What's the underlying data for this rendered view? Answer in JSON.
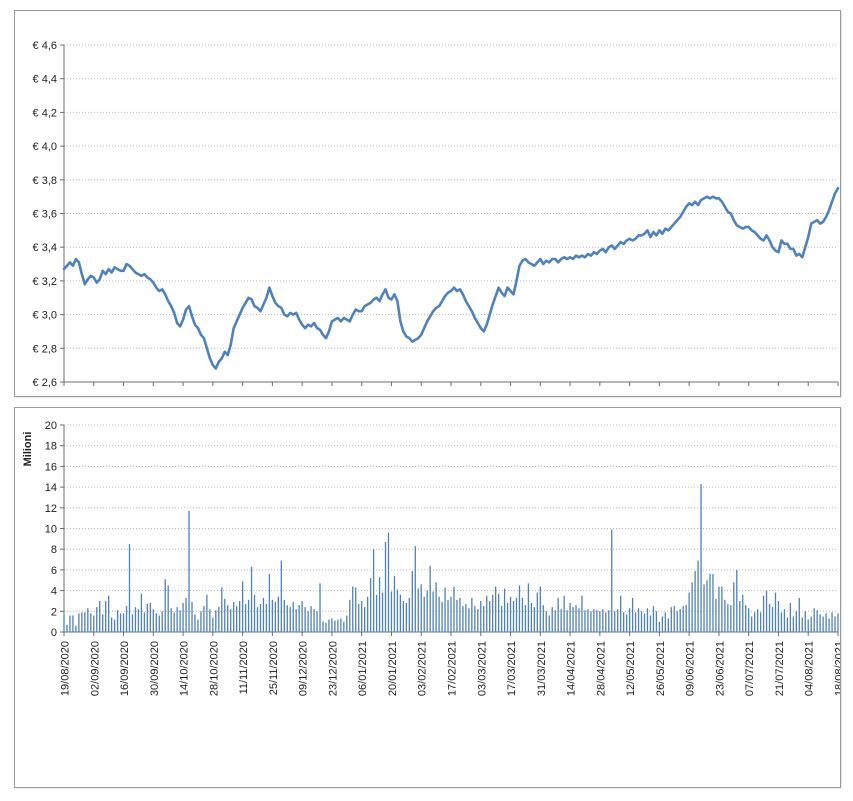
{
  "chart_data": [
    {
      "type": "line",
      "name": "share-price",
      "ylabel": "",
      "y_tick_labels": [
        "€ 4,6",
        "€ 4,4",
        "€ 4,2",
        "€ 4,0",
        "€ 3,8",
        "€ 3,6",
        "€ 3,4",
        "€ 3,2",
        "€ 3,0",
        "€ 2,8",
        "€ 2,6"
      ],
      "ylim": [
        2.6,
        4.6
      ],
      "y_step": 0.2,
      "grid": true,
      "line_color": "#4F81BD",
      "x_tick_labels": [
        "19/08/2020",
        "02/09/2020",
        "16/09/2020",
        "30/09/2020",
        "14/10/2020",
        "28/10/2020",
        "11/11/2020",
        "25/11/2020",
        "09/12/2020",
        "23/12/2020",
        "06/01/2021",
        "20/01/2021",
        "03/02/2021",
        "17/02/2021",
        "03/03/2021",
        "17/03/2021",
        "31/03/2021",
        "14/04/2021",
        "28/04/2021",
        "12/05/2021",
        "26/05/2021",
        "09/06/2021",
        "23/06/2021",
        "07/07/2021",
        "21/07/2021",
        "04/08/2021",
        "18/08/2021"
      ],
      "show_x_labels": false,
      "values": [
        3.27,
        3.29,
        3.31,
        3.29,
        3.33,
        3.31,
        3.24,
        3.18,
        3.21,
        3.23,
        3.22,
        3.19,
        3.21,
        3.26,
        3.24,
        3.27,
        3.25,
        3.28,
        3.27,
        3.26,
        3.26,
        3.3,
        3.29,
        3.27,
        3.25,
        3.24,
        3.23,
        3.24,
        3.22,
        3.21,
        3.19,
        3.16,
        3.14,
        3.15,
        3.12,
        3.08,
        3.05,
        3.01,
        2.95,
        2.93,
        2.97,
        3.03,
        3.05,
        2.99,
        2.94,
        2.92,
        2.88,
        2.86,
        2.8,
        2.74,
        2.7,
        2.68,
        2.72,
        2.74,
        2.78,
        2.76,
        2.82,
        2.92,
        2.96,
        3.0,
        3.04,
        3.07,
        3.1,
        3.09,
        3.05,
        3.04,
        3.02,
        3.06,
        3.1,
        3.16,
        3.11,
        3.07,
        3.05,
        3.04,
        3.0,
        2.99,
        3.01,
        3.0,
        3.01,
        2.97,
        2.94,
        2.92,
        2.94,
        2.93,
        2.95,
        2.92,
        2.91,
        2.88,
        2.86,
        2.9,
        2.96,
        2.97,
        2.98,
        2.96,
        2.98,
        2.97,
        2.96,
        3.0,
        3.03,
        3.02,
        3.02,
        3.05,
        3.06,
        3.07,
        3.09,
        3.1,
        3.08,
        3.12,
        3.15,
        3.1,
        3.09,
        3.12,
        3.08,
        2.96,
        2.9,
        2.87,
        2.86,
        2.84,
        2.85,
        2.86,
        2.88,
        2.92,
        2.96,
        2.99,
        3.02,
        3.04,
        3.05,
        3.08,
        3.11,
        3.13,
        3.14,
        3.16,
        3.14,
        3.15,
        3.12,
        3.08,
        3.05,
        3.02,
        2.98,
        2.95,
        2.92,
        2.9,
        2.94,
        3.0,
        3.06,
        3.11,
        3.16,
        3.13,
        3.11,
        3.16,
        3.14,
        3.12,
        3.2,
        3.29,
        3.32,
        3.33,
        3.31,
        3.3,
        3.29,
        3.31,
        3.33,
        3.3,
        3.32,
        3.31,
        3.33,
        3.33,
        3.31,
        3.33,
        3.34,
        3.33,
        3.34,
        3.33,
        3.35,
        3.34,
        3.35,
        3.34,
        3.36,
        3.35,
        3.37,
        3.36,
        3.38,
        3.39,
        3.37,
        3.4,
        3.41,
        3.39,
        3.41,
        3.43,
        3.42,
        3.44,
        3.45,
        3.44,
        3.45,
        3.47,
        3.47,
        3.48,
        3.5,
        3.46,
        3.49,
        3.47,
        3.5,
        3.48,
        3.51,
        3.5,
        3.52,
        3.54,
        3.56,
        3.58,
        3.61,
        3.64,
        3.66,
        3.65,
        3.67,
        3.65,
        3.68,
        3.69,
        3.7,
        3.69,
        3.7,
        3.69,
        3.69,
        3.67,
        3.64,
        3.61,
        3.6,
        3.56,
        3.53,
        3.52,
        3.51,
        3.52,
        3.52,
        3.5,
        3.49,
        3.47,
        3.45,
        3.44,
        3.47,
        3.44,
        3.4,
        3.38,
        3.37,
        3.44,
        3.42,
        3.42,
        3.39,
        3.39,
        3.35,
        3.36,
        3.34,
        3.4,
        3.46,
        3.54,
        3.55,
        3.56,
        3.54,
        3.55,
        3.58,
        3.62,
        3.67,
        3.72,
        3.75
      ]
    },
    {
      "type": "bar",
      "name": "volume",
      "ylabel": "Milioni",
      "y_tick_labels": [
        "20",
        "18",
        "16",
        "14",
        "12",
        "10",
        "8",
        "6",
        "4",
        "2",
        "0"
      ],
      "ylim": [
        0,
        20
      ],
      "y_step": 2,
      "grid": true,
      "bar_color": "#4F81BD",
      "x_tick_labels": [
        "19/08/2020",
        "02/09/2020",
        "16/09/2020",
        "30/09/2020",
        "14/10/2020",
        "28/10/2020",
        "11/11/2020",
        "25/11/2020",
        "09/12/2020",
        "23/12/2020",
        "06/01/2021",
        "20/01/2021",
        "03/02/2021",
        "17/02/2021",
        "03/03/2021",
        "17/03/2021",
        "31/03/2021",
        "14/04/2021",
        "28/04/2021",
        "12/05/2021",
        "26/05/2021",
        "09/06/2021",
        "23/06/2021",
        "07/07/2021",
        "21/07/2021",
        "04/08/2021",
        "18/08/2021"
      ],
      "show_x_labels": true,
      "values": [
        1.7,
        0.7,
        1.6,
        1.6,
        0.6,
        1.8,
        1.9,
        1.9,
        2.3,
        1.8,
        1.6,
        2.4,
        3.0,
        1.7,
        3.0,
        3.5,
        1.4,
        1.2,
        2.1,
        1.8,
        1.8,
        2.5,
        8.5,
        1.7,
        2.4,
        2.2,
        3.7,
        1.9,
        2.7,
        2.8,
        2.2,
        1.8,
        1.6,
        2.0,
        5.1,
        4.5,
        2.3,
        1.9,
        2.4,
        2.1,
        2.8,
        3.3,
        11.7,
        2.9,
        1.7,
        1.2,
        2.0,
        2.5,
        3.6,
        2.2,
        1.4,
        2.1,
        2.4,
        4.3,
        3.2,
        2.6,
        2.2,
        2.9,
        2.5,
        3.0,
        4.9,
        2.7,
        3.1,
        6.3,
        3.6,
        2.4,
        2.7,
        3.3,
        2.7,
        5.6,
        3.1,
        2.9,
        3.4,
        6.9,
        3.1,
        2.6,
        2.4,
        2.9,
        2.2,
        2.6,
        3.0,
        2.4,
        2.0,
        2.5,
        2.2,
        2.0,
        4.7,
        1.0,
        0.9,
        1.2,
        1.3,
        1.1,
        1.2,
        1.3,
        1.0,
        1.6,
        3.1,
        4.4,
        4.3,
        2.7,
        3.0,
        2.4,
        3.4,
        5.2,
        8.0,
        3.6,
        5.3,
        3.8,
        8.7,
        9.6,
        3.9,
        5.4,
        4.1,
        3.6,
        3.0,
        2.8,
        3.3,
        5.9,
        8.3,
        4.2,
        4.6,
        3.4,
        4.0,
        6.4,
        3.9,
        4.8,
        3.4,
        2.9,
        4.3,
        3.1,
        3.4,
        4.4,
        3.1,
        3.3,
        2.5,
        2.7,
        2.3,
        3.3,
        2.5,
        2.2,
        3.0,
        2.5,
        3.5,
        3.0,
        3.6,
        4.4,
        3.7,
        2.5,
        4.2,
        2.8,
        3.4,
        3.0,
        3.3,
        4.5,
        3.3,
        2.6,
        4.7,
        2.8,
        2.4,
        3.8,
        4.4,
        2.6,
        2.0,
        1.6,
        2.4,
        2.1,
        3.3,
        2.2,
        3.5,
        2.1,
        2.8,
        2.4,
        2.6,
        2.3,
        3.5,
        2.1,
        2.2,
        2.0,
        2.2,
        2.1,
        2.0,
        2.2,
        1.9,
        2.1,
        9.9,
        2.0,
        2.2,
        3.5,
        1.9,
        1.7,
        2.3,
        3.3,
        1.9,
        2.3,
        2.0,
        1.8,
        2.3,
        1.6,
        2.5,
        2.0,
        1.0,
        1.5,
        1.9,
        1.3,
        2.4,
        2.5,
        2.0,
        2.2,
        2.5,
        2.6,
        3.8,
        4.8,
        5.9,
        6.9,
        14.3,
        4.6,
        5.0,
        5.6,
        5.6,
        3.2,
        4.4,
        4.4,
        3.1,
        2.7,
        2.6,
        4.8,
        6.0,
        3.0,
        3.6,
        2.6,
        2.3,
        1.5,
        1.9,
        2.2,
        1.9,
        3.5,
        4.0,
        2.7,
        2.4,
        3.8,
        3.0,
        1.9,
        2.2,
        1.4,
        2.8,
        1.5,
        2.0,
        3.3,
        1.4,
        2.0,
        1.2,
        1.5,
        2.3,
        2.1,
        1.7,
        1.5,
        1.8,
        1.3,
        1.9,
        1.5,
        1.8
      ]
    }
  ],
  "style": {
    "grid_color": "#b8b8b8",
    "axis_color": "#6e6e6e",
    "label_color": "#1f1f1f"
  }
}
